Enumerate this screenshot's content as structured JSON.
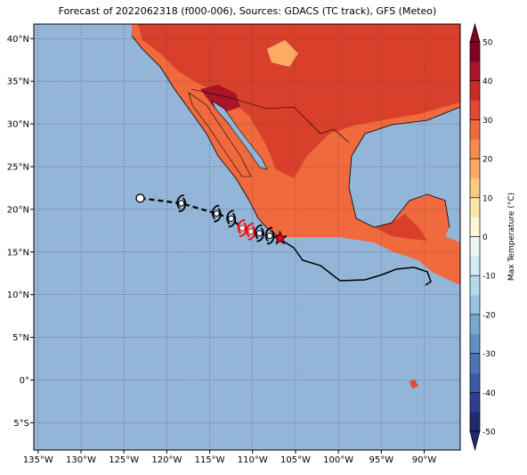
{
  "chart_data": {
    "type": "map",
    "title": "Forecast of 2022062318 (f000-006), Sources: GDACS (TC track), GFS (Meteo)",
    "xlim": [
      -135.5,
      -85.8
    ],
    "ylim": [
      -8.2,
      41.7
    ],
    "xticks": [
      {
        "value": -135,
        "label": "135°W"
      },
      {
        "value": -130,
        "label": "130°W"
      },
      {
        "value": -125,
        "label": "125°W"
      },
      {
        "value": -120,
        "label": "120°W"
      },
      {
        "value": -115,
        "label": "115°W"
      },
      {
        "value": -110,
        "label": "110°W"
      },
      {
        "value": -105,
        "label": "105°W"
      },
      {
        "value": -100,
        "label": "100°W"
      },
      {
        "value": -95,
        "label": "95°W"
      },
      {
        "value": -90,
        "label": "90°W"
      }
    ],
    "yticks": [
      {
        "value": -5,
        "label": "5°S"
      },
      {
        "value": 0,
        "label": "0°"
      },
      {
        "value": 5,
        "label": "5°N"
      },
      {
        "value": 10,
        "label": "10°N"
      },
      {
        "value": 15,
        "label": "15°N"
      },
      {
        "value": 20,
        "label": "20°N"
      },
      {
        "value": 25,
        "label": "25°N"
      },
      {
        "value": 30,
        "label": "30°N"
      },
      {
        "value": 35,
        "label": "35°N"
      },
      {
        "value": 40,
        "label": "40°N"
      }
    ],
    "grid": true,
    "colorbar": {
      "label": "Max Temperature (°C)",
      "lim": [
        -50,
        50
      ],
      "ticks": [
        -50,
        -40,
        -30,
        -20,
        -10,
        0,
        10,
        20,
        30,
        40,
        50
      ],
      "colors": [
        "#1e2a6e",
        "#2d3d94",
        "#3a5aa8",
        "#4a76b5",
        "#5f91c2",
        "#78aad0",
        "#97c3dd",
        "#b6d9e9",
        "#d3ebf2",
        "#eaf6f7",
        "#fdf6d8",
        "#fee6a8",
        "#fdcb80",
        "#fcab64",
        "#f88b50",
        "#f06a3e",
        "#e04a30",
        "#c92c27",
        "#aa1527",
        "#820021"
      ]
    },
    "track": {
      "lon": [
        -123.1,
        -118.3,
        -114.2,
        -112.5,
        -111.2,
        -110.2,
        -109.2,
        -108.0,
        -106.8
      ],
      "lat": [
        21.3,
        20.7,
        19.5,
        18.9,
        17.8,
        17.4,
        17.2,
        16.9,
        16.6
      ],
      "markers": [
        "open-circle",
        "storm",
        "storm",
        "storm",
        "storm",
        "storm",
        "storm",
        "storm",
        "star"
      ],
      "colors": [
        "#000000",
        "#000000",
        "#000000",
        "#000000",
        "#ff0000",
        "#ff0000",
        "#000000",
        "#000000",
        "#ff0000"
      ]
    }
  }
}
